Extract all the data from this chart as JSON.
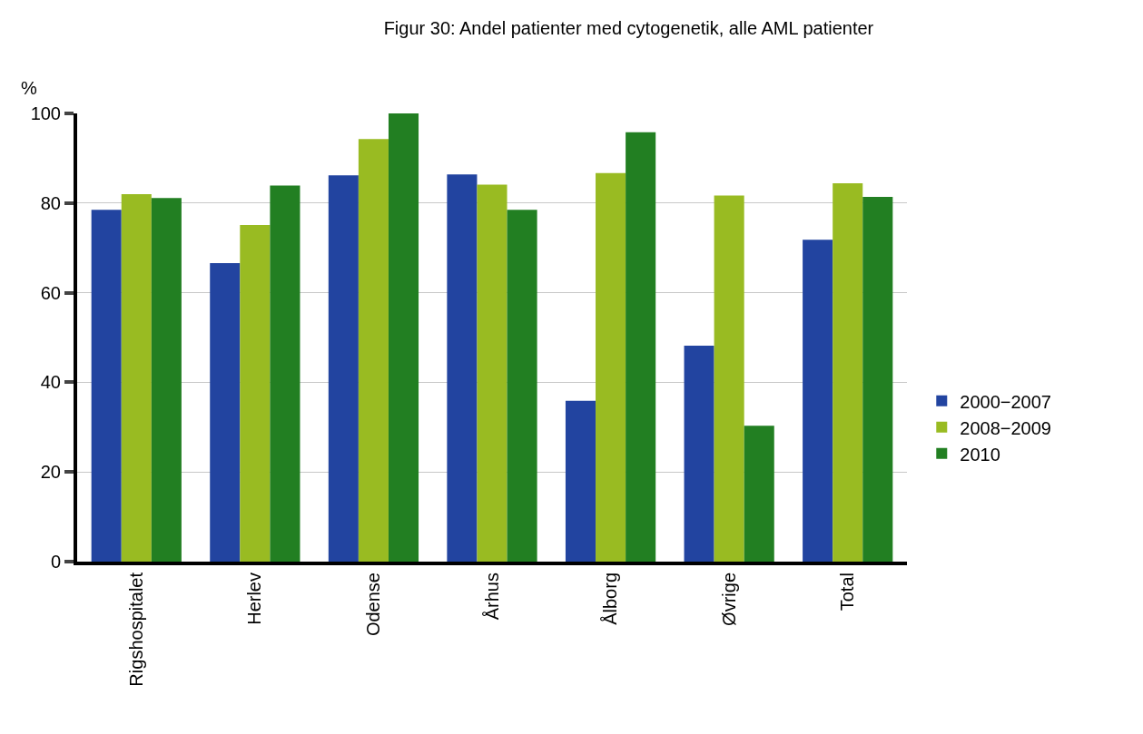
{
  "chart_data": {
    "type": "bar",
    "title": "Figur 30: Andel patienter med cytogenetik, alle AML patienter",
    "ylabel": "%",
    "categories": [
      "Rigshospitalet",
      "Herlev",
      "Odense",
      "Århus",
      "Ålborg",
      "Øvrige",
      "Total"
    ],
    "series": [
      {
        "name": "2000−2007",
        "color": "#2244a0",
        "values": [
          78.5,
          66.6,
          86.2,
          86.4,
          35.9,
          48.2,
          71.8
        ]
      },
      {
        "name": "2008−2009",
        "color": "#99bb22",
        "values": [
          82.0,
          75.1,
          94.3,
          84.1,
          86.7,
          81.7,
          84.4
        ]
      },
      {
        "name": "2010",
        "color": "#227f22",
        "values": [
          81.1,
          83.9,
          100,
          78.5,
          95.8,
          30.3,
          81.4
        ]
      }
    ],
    "ylim": [
      0,
      100
    ],
    "yticks": [
      0,
      20,
      40,
      60,
      80,
      100
    ],
    "grid": "y",
    "legend": "right"
  }
}
